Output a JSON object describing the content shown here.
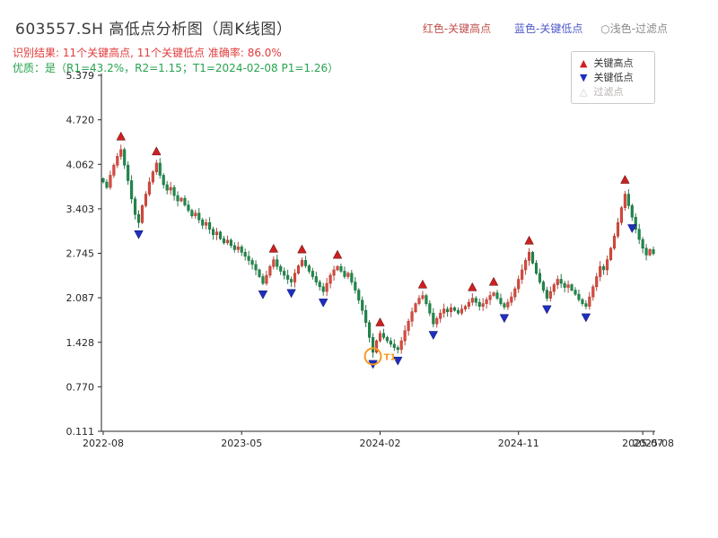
{
  "page": {
    "title": "603557.SH 高低点分析图（周K线图）",
    "top_legend": {
      "high_label": "红色-关键高点",
      "low_label": "蓝色-关键低点",
      "filtered_label": "○浅色-过滤点"
    },
    "result_line": "识别结果: 11个关键高点, 11个关键低点  准确率: 86.0%",
    "quality_line": "优质：是（R1=43.2%，R2=1.15；T1=2024-02-08 P1=1.26）"
  },
  "colors": {
    "up_candle": "#d84b40",
    "up_edge": "#b03226",
    "down_candle": "#1f8a4c",
    "down_edge": "#156b39",
    "high_marker": "#cf1f1f",
    "low_marker": "#1f2fbf",
    "annotation": "#f59a23",
    "axis": "#262626"
  },
  "chart_data": {
    "type": "candlestick",
    "title": "603557.SH 高低点分析图（周K线图）",
    "x_ticks": [
      {
        "label": "2022-08",
        "week": 0
      },
      {
        "label": "2023-05",
        "week": 39
      },
      {
        "label": "2024-02",
        "week": 78
      },
      {
        "label": "2024-11",
        "week": 117
      },
      {
        "label": "2025-07",
        "week": 152
      },
      {
        "label": "2025-08",
        "week": 155
      }
    ],
    "y_ticks": [
      "5.379",
      "4.720",
      "4.062",
      "3.403",
      "2.745",
      "2.087",
      "1.428",
      "0.770",
      "0.111"
    ],
    "ylim": [
      0.111,
      5.379
    ],
    "closes": [
      3.8,
      3.72,
      3.9,
      4.05,
      4.18,
      4.28,
      4.05,
      3.82,
      3.55,
      3.32,
      3.2,
      3.45,
      3.62,
      3.8,
      3.95,
      4.08,
      3.9,
      3.76,
      3.68,
      3.72,
      3.6,
      3.52,
      3.56,
      3.46,
      3.38,
      3.3,
      3.34,
      3.24,
      3.16,
      3.2,
      3.1,
      3.02,
      3.06,
      2.96,
      2.9,
      2.94,
      2.86,
      2.8,
      2.84,
      2.76,
      2.7,
      2.64,
      2.58,
      2.5,
      2.4,
      2.3,
      2.42,
      2.55,
      2.65,
      2.55,
      2.48,
      2.42,
      2.36,
      2.32,
      2.45,
      2.56,
      2.64,
      2.56,
      2.48,
      2.4,
      2.32,
      2.25,
      2.18,
      2.3,
      2.42,
      2.5,
      2.55,
      2.48,
      2.4,
      2.45,
      2.32,
      2.2,
      2.05,
      1.9,
      1.72,
      1.5,
      1.28,
      1.45,
      1.56,
      1.5,
      1.45,
      1.4,
      1.35,
      1.32,
      1.45,
      1.6,
      1.74,
      1.88,
      2.0,
      2.08,
      2.12,
      2.0,
      1.86,
      1.7,
      1.78,
      1.86,
      1.92,
      1.88,
      1.94,
      1.9,
      1.86,
      1.92,
      1.96,
      2.02,
      2.08,
      2.02,
      1.96,
      2.0,
      2.06,
      2.12,
      2.16,
      2.08,
      2.0,
      1.95,
      2.02,
      2.1,
      2.22,
      2.36,
      2.5,
      2.64,
      2.76,
      2.6,
      2.45,
      2.32,
      2.2,
      2.08,
      2.18,
      2.28,
      2.36,
      2.3,
      2.24,
      2.28,
      2.2,
      2.14,
      2.06,
      2.0,
      1.96,
      2.1,
      2.25,
      2.4,
      2.55,
      2.5,
      2.65,
      2.82,
      3.0,
      3.2,
      3.42,
      3.62,
      3.45,
      3.28,
      3.1,
      2.95,
      2.82,
      2.72,
      2.8,
      2.74
    ],
    "markers_high": [
      {
        "week": 5,
        "value": 4.38
      },
      {
        "week": 15,
        "value": 4.16
      },
      {
        "week": 48,
        "value": 2.72
      },
      {
        "week": 56,
        "value": 2.71
      },
      {
        "week": 66,
        "value": 2.63
      },
      {
        "week": 78,
        "value": 1.63
      },
      {
        "week": 90,
        "value": 2.19
      },
      {
        "week": 104,
        "value": 2.15
      },
      {
        "week": 110,
        "value": 2.23
      },
      {
        "week": 120,
        "value": 2.84
      },
      {
        "week": 147,
        "value": 3.74
      }
    ],
    "markers_low": [
      {
        "week": 10,
        "value": 3.12
      },
      {
        "week": 45,
        "value": 2.23
      },
      {
        "week": 53,
        "value": 2.25
      },
      {
        "week": 62,
        "value": 2.11
      },
      {
        "week": 76,
        "value": 1.2
      },
      {
        "week": 83,
        "value": 1.25
      },
      {
        "week": 93,
        "value": 1.63
      },
      {
        "week": 113,
        "value": 1.88
      },
      {
        "week": 125,
        "value": 2.01
      },
      {
        "week": 136,
        "value": 1.89
      },
      {
        "week": 149,
        "value": 3.21
      }
    ],
    "legend": [
      {
        "label": "关键高点",
        "type": "high"
      },
      {
        "label": "关键低点",
        "type": "low"
      },
      {
        "label": "过滤点",
        "type": "filtered"
      }
    ],
    "annotation": {
      "label": "T1",
      "week": 76,
      "value": 1.26
    }
  }
}
